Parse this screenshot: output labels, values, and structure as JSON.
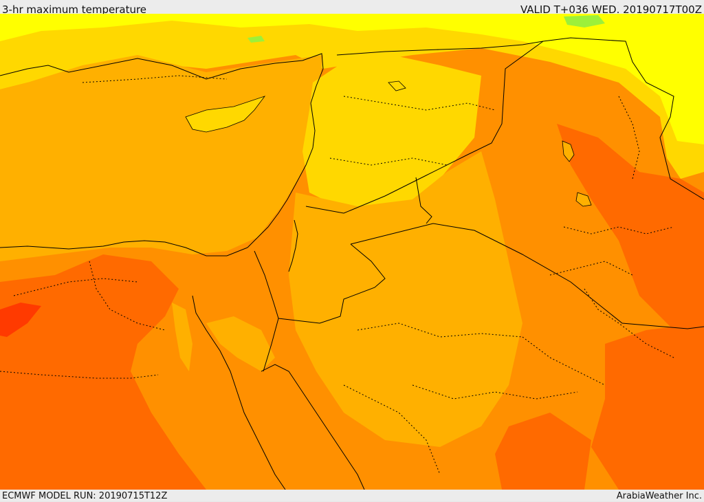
{
  "header": {
    "title": "3-hr maximum temperature",
    "valid": "VALID T+036 WED. 20190717T00Z"
  },
  "footer": {
    "model_run": "ECMWF MODEL RUN: 20190715T12Z",
    "brand": "ArabiaWeather Inc."
  },
  "palette": {
    "lightgreen": "#9cf03a",
    "yellow": "#ffff00",
    "gold": "#ffd800",
    "amber": "#ffb000",
    "orange": "#ff9000",
    "darkorange": "#ff6a00",
    "red": "#ff3a00",
    "border": "#000000"
  }
}
